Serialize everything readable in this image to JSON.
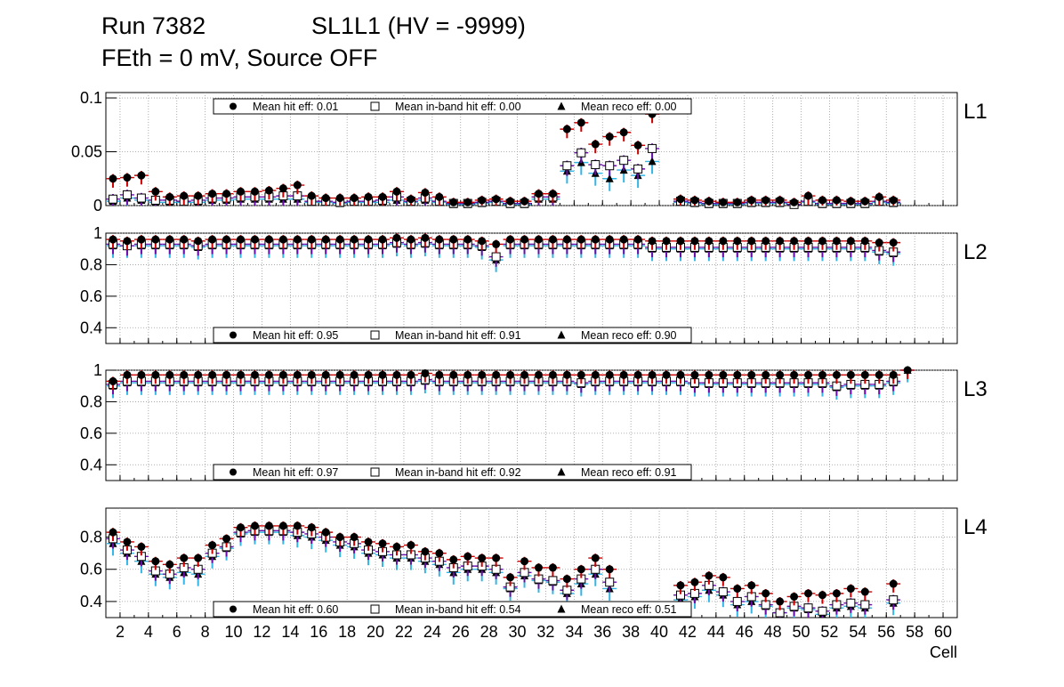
{
  "title": {
    "run_label": "Run 7382",
    "chamber_label": "SL1L1 (HV = -9999)",
    "line2": "FEth = 0 mV, Source OFF"
  },
  "chart_data": {
    "type": "scatter",
    "x_label": "Cell",
    "x_range": [
      1,
      61
    ],
    "x_ticks": [
      2,
      4,
      6,
      8,
      10,
      12,
      14,
      16,
      18,
      20,
      22,
      24,
      26,
      28,
      30,
      32,
      34,
      36,
      38,
      40,
      42,
      44,
      46,
      48,
      50,
      52,
      54,
      56,
      58,
      60
    ],
    "legend_marker_labels": [
      "Mean hit  eff:",
      "Mean in-band hit eff:",
      "Mean reco eff:"
    ],
    "colors": {
      "hit_error": "#cc0000",
      "inband_error": "#6a0dad",
      "reco_error": "#33b5e5",
      "grid": "#999999"
    },
    "panels": [
      {
        "label": "L1",
        "y_range": [
          0,
          0.105
        ],
        "y_ticks": [
          0,
          0.05,
          0.1
        ],
        "y_tick_labels": [
          "0",
          "0.05",
          "0.1"
        ],
        "legend_position": "top",
        "legend_values": [
          "0.01",
          "0.00",
          "0.00"
        ],
        "mean_hit": [
          0.025,
          0.026,
          0.028,
          0.013,
          0.008,
          0.009,
          0.009,
          0.011,
          0.011,
          0.013,
          0.013,
          0.014,
          0.016,
          0.019,
          0.009,
          0.007,
          0.007,
          0.007,
          0.008,
          0.008,
          0.013,
          0.006,
          0.012,
          0.008,
          0.003,
          0.003,
          0.005,
          0.006,
          0.004,
          0.004,
          0.011,
          0.011,
          0.071,
          0.077,
          0.057,
          0.064,
          0.068,
          0.056,
          0.085,
          null,
          0.006,
          0.005,
          0.004,
          0.003,
          0.003,
          0.005,
          0.005,
          0.005,
          0.003,
          0.009,
          0.005,
          0.005,
          0.004,
          0.004,
          0.008,
          0.005
        ],
        "inband_hit": [
          0.006,
          0.01,
          0.007,
          0.005,
          0.005,
          0.004,
          0.005,
          0.007,
          0.007,
          0.008,
          0.008,
          0.008,
          0.009,
          0.009,
          0.004,
          0.004,
          0.003,
          0.004,
          0.004,
          0.005,
          0.008,
          0.004,
          0.007,
          0.004,
          0.002,
          0.002,
          0.003,
          0.004,
          0.002,
          0.002,
          0.008,
          0.008,
          0.037,
          0.049,
          0.038,
          0.037,
          0.042,
          0.034,
          0.053,
          null,
          0.004,
          0.003,
          0.002,
          0.002,
          0.002,
          0.003,
          0.003,
          0.003,
          0.001,
          0.004,
          0.002,
          0.002,
          0.002,
          0.002,
          0.004,
          0.003
        ],
        "reco": [
          0.004,
          0.007,
          0.005,
          0.003,
          0.003,
          0.003,
          0.003,
          0.005,
          0.005,
          0.006,
          0.006,
          0.006,
          0.006,
          0.006,
          0.003,
          0.003,
          0.002,
          0.003,
          0.003,
          0.003,
          0.005,
          0.003,
          0.005,
          0.003,
          0.001,
          0.001,
          0.002,
          0.003,
          0.001,
          0.001,
          0.006,
          0.006,
          0.032,
          0.04,
          0.03,
          0.025,
          0.033,
          0.028,
          0.041,
          null,
          0.003,
          0.002,
          0.001,
          0.001,
          0.001,
          0.002,
          0.002,
          0.002,
          0.001,
          0.003,
          0.001,
          0.001,
          0.001,
          0.001,
          0.003,
          0.002
        ]
      },
      {
        "label": "L2",
        "y_range": [
          0.3,
          1.0
        ],
        "y_ticks": [
          0.4,
          0.6,
          0.8,
          1.0
        ],
        "y_tick_labels": [
          "0.4",
          "0.6",
          "0.8",
          "1"
        ],
        "legend_position": "bottom",
        "legend_values": [
          "0.95",
          "0.91",
          "0.90"
        ],
        "mean_hit": [
          0.96,
          0.95,
          0.96,
          0.96,
          0.96,
          0.96,
          0.95,
          0.96,
          0.96,
          0.96,
          0.96,
          0.96,
          0.96,
          0.96,
          0.96,
          0.96,
          0.96,
          0.96,
          0.96,
          0.96,
          0.97,
          0.96,
          0.97,
          0.96,
          0.96,
          0.96,
          0.95,
          0.93,
          0.96,
          0.96,
          0.96,
          0.96,
          0.96,
          0.96,
          0.96,
          0.96,
          0.96,
          0.96,
          0.95,
          0.95,
          0.95,
          0.95,
          0.95,
          0.95,
          0.95,
          0.95,
          0.95,
          0.95,
          0.95,
          0.95,
          0.95,
          0.95,
          0.95,
          0.95,
          0.94,
          0.94
        ],
        "inband_hit": [
          0.93,
          0.92,
          0.93,
          0.93,
          0.93,
          0.93,
          0.92,
          0.93,
          0.93,
          0.93,
          0.93,
          0.93,
          0.93,
          0.93,
          0.93,
          0.93,
          0.93,
          0.93,
          0.93,
          0.93,
          0.94,
          0.93,
          0.94,
          0.93,
          0.93,
          0.93,
          0.92,
          0.85,
          0.93,
          0.93,
          0.93,
          0.93,
          0.93,
          0.93,
          0.93,
          0.93,
          0.93,
          0.93,
          0.91,
          0.91,
          0.91,
          0.91,
          0.91,
          0.91,
          0.91,
          0.91,
          0.91,
          0.91,
          0.91,
          0.91,
          0.91,
          0.91,
          0.91,
          0.91,
          0.89,
          0.88
        ],
        "reco": [
          0.92,
          0.92,
          0.92,
          0.92,
          0.92,
          0.92,
          0.91,
          0.92,
          0.92,
          0.92,
          0.92,
          0.92,
          0.92,
          0.92,
          0.92,
          0.92,
          0.92,
          0.92,
          0.92,
          0.92,
          0.93,
          0.92,
          0.93,
          0.92,
          0.92,
          0.92,
          0.91,
          0.83,
          0.92,
          0.92,
          0.92,
          0.92,
          0.92,
          0.92,
          0.92,
          0.92,
          0.92,
          0.92,
          0.9,
          0.9,
          0.9,
          0.9,
          0.9,
          0.9,
          0.9,
          0.9,
          0.9,
          0.9,
          0.9,
          0.9,
          0.9,
          0.9,
          0.9,
          0.9,
          0.88,
          0.87
        ]
      },
      {
        "label": "L3",
        "y_range": [
          0.3,
          1.0
        ],
        "y_ticks": [
          0.4,
          0.6,
          0.8,
          1.0
        ],
        "y_tick_labels": [
          "0.4",
          "0.6",
          "0.8",
          "1"
        ],
        "legend_position": "bottom",
        "legend_values": [
          "0.97",
          "0.92",
          "0.91"
        ],
        "mean_hit": [
          0.93,
          0.97,
          0.97,
          0.97,
          0.97,
          0.97,
          0.97,
          0.97,
          0.97,
          0.97,
          0.97,
          0.97,
          0.97,
          0.97,
          0.97,
          0.97,
          0.97,
          0.97,
          0.97,
          0.97,
          0.97,
          0.97,
          0.98,
          0.97,
          0.97,
          0.97,
          0.97,
          0.97,
          0.97,
          0.97,
          0.97,
          0.97,
          0.97,
          0.97,
          0.97,
          0.97,
          0.97,
          0.97,
          0.97,
          0.97,
          0.97,
          0.97,
          0.97,
          0.97,
          0.97,
          0.97,
          0.97,
          0.97,
          0.97,
          0.97,
          0.97,
          0.97,
          0.97,
          0.97,
          0.97,
          0.97,
          1.0
        ],
        "inband_hit": [
          0.91,
          0.93,
          0.93,
          0.93,
          0.93,
          0.93,
          0.93,
          0.93,
          0.93,
          0.93,
          0.93,
          0.93,
          0.93,
          0.93,
          0.93,
          0.93,
          0.93,
          0.93,
          0.93,
          0.93,
          0.93,
          0.93,
          0.94,
          0.93,
          0.93,
          0.93,
          0.93,
          0.93,
          0.93,
          0.93,
          0.93,
          0.93,
          0.93,
          0.92,
          0.93,
          0.93,
          0.93,
          0.93,
          0.93,
          0.93,
          0.93,
          0.92,
          0.92,
          0.92,
          0.92,
          0.92,
          0.92,
          0.92,
          0.92,
          0.92,
          0.92,
          0.9,
          0.91,
          0.91,
          0.91,
          0.93,
          null
        ],
        "reco": [
          0.9,
          0.92,
          0.92,
          0.92,
          0.92,
          0.92,
          0.92,
          0.92,
          0.92,
          0.92,
          0.92,
          0.92,
          0.92,
          0.92,
          0.92,
          0.92,
          0.92,
          0.92,
          0.92,
          0.92,
          0.92,
          0.92,
          0.93,
          0.92,
          0.92,
          0.92,
          0.92,
          0.92,
          0.92,
          0.92,
          0.92,
          0.92,
          0.92,
          0.91,
          0.92,
          0.92,
          0.92,
          0.92,
          0.92,
          0.92,
          0.92,
          0.91,
          0.91,
          0.91,
          0.91,
          0.91,
          0.91,
          0.91,
          0.91,
          0.91,
          0.91,
          0.89,
          0.9,
          0.9,
          0.9,
          0.92,
          1.0
        ]
      },
      {
        "label": "L4",
        "y_range": [
          0.3,
          0.98
        ],
        "y_ticks": [
          0.4,
          0.6,
          0.8
        ],
        "y_tick_labels": [
          "0.4",
          "0.6",
          "0.8"
        ],
        "legend_position": "bottom",
        "legend_values": [
          "0.60",
          "0.54",
          "0.51"
        ],
        "mean_hit": [
          0.83,
          0.77,
          0.74,
          0.65,
          0.63,
          0.67,
          0.67,
          0.75,
          0.79,
          0.86,
          0.87,
          0.87,
          0.87,
          0.87,
          0.86,
          0.83,
          0.8,
          0.8,
          0.77,
          0.76,
          0.74,
          0.75,
          0.71,
          0.7,
          0.66,
          0.68,
          0.67,
          0.67,
          0.55,
          0.65,
          0.61,
          0.61,
          0.54,
          0.6,
          0.67,
          0.6,
          null,
          null,
          null,
          null,
          0.5,
          0.52,
          0.56,
          0.55,
          0.48,
          0.5,
          0.45,
          0.4,
          0.43,
          0.45,
          0.44,
          0.45,
          0.48,
          0.46,
          null,
          0.51
        ],
        "inband_hit": [
          0.79,
          0.72,
          0.68,
          0.59,
          0.57,
          0.61,
          0.6,
          0.7,
          0.74,
          0.83,
          0.84,
          0.84,
          0.84,
          0.83,
          0.82,
          0.8,
          0.77,
          0.76,
          0.72,
          0.71,
          0.69,
          0.69,
          0.67,
          0.65,
          0.61,
          0.62,
          0.62,
          0.6,
          0.49,
          0.58,
          0.54,
          0.53,
          0.47,
          0.54,
          0.6,
          0.52,
          null,
          null,
          null,
          null,
          0.44,
          0.45,
          0.5,
          0.46,
          0.4,
          0.43,
          0.38,
          0.33,
          0.37,
          0.36,
          0.34,
          0.38,
          0.39,
          0.38,
          null,
          0.41
        ],
        "reco": [
          0.76,
          0.7,
          0.65,
          0.57,
          0.55,
          0.58,
          0.57,
          0.68,
          0.73,
          0.82,
          0.83,
          0.83,
          0.83,
          0.81,
          0.8,
          0.78,
          0.75,
          0.74,
          0.7,
          0.69,
          0.67,
          0.67,
          0.65,
          0.63,
          0.58,
          0.6,
          0.6,
          0.58,
          0.48,
          0.56,
          0.53,
          0.52,
          0.45,
          0.51,
          0.57,
          0.48,
          null,
          null,
          null,
          null,
          0.41,
          0.43,
          0.47,
          0.44,
          0.38,
          0.4,
          0.37,
          0.33,
          0.36,
          0.35,
          0.32,
          0.36,
          0.37,
          0.36,
          null,
          0.39
        ]
      }
    ]
  }
}
